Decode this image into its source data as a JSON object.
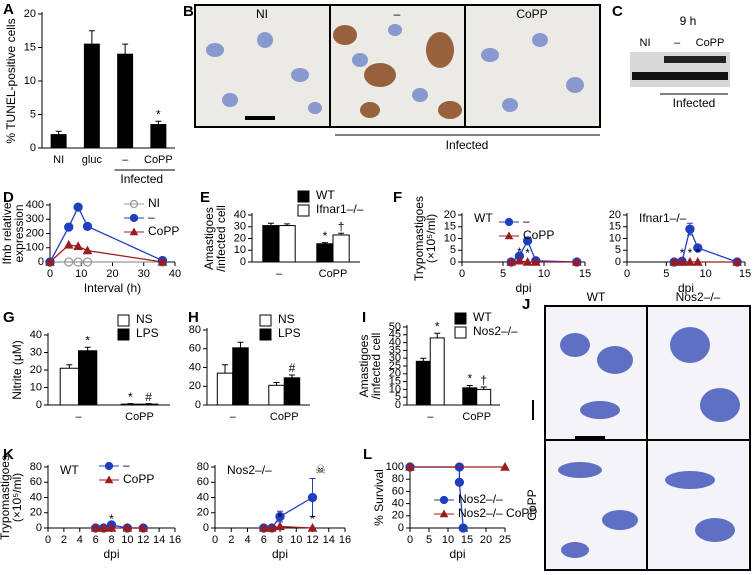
{
  "chart_data": [
    {
      "type": "bar",
      "panel": "A",
      "ylabel": "% TUNEL-positive cells",
      "categories": [
        "NI",
        "gluc",
        "–",
        "CoPP"
      ],
      "group_label": "Infected",
      "series": [
        {
          "color": "#000000",
          "values": [
            2,
            15.5,
            14,
            3.5
          ],
          "errors": [
            0.5,
            2,
            1.5,
            0.5
          ],
          "notes": [
            null,
            null,
            null,
            "*"
          ]
        }
      ],
      "ylim": [
        0,
        20
      ],
      "yticks": [
        0,
        5,
        10,
        15,
        20
      ]
    },
    {
      "type": "line",
      "panel": "D",
      "ylabel": [
        "Ifnb relative",
        "expression"
      ],
      "xlabel": "Interval (h)",
      "xlim": [
        0,
        40
      ],
      "xticks": [
        0,
        10,
        20,
        30,
        40
      ],
      "ylim": [
        0,
        400
      ],
      "yticks": [
        0,
        100,
        200,
        300,
        400
      ],
      "series": [
        {
          "name": "NI",
          "color": "#999999",
          "marker": "circle",
          "marker_fill": "none",
          "x": [
            0,
            6,
            9,
            12,
            36
          ],
          "values": [
            0,
            0,
            0,
            0,
            0
          ]
        },
        {
          "name": "–",
          "color": "#1f3fbf",
          "marker": "circle",
          "x": [
            0,
            6,
            9,
            12,
            36
          ],
          "values": [
            0,
            245,
            385,
            250,
            10
          ]
        },
        {
          "name": "CoPP",
          "color": "#9b1c1c",
          "marker": "triangle",
          "x": [
            0,
            6,
            9,
            12,
            36
          ],
          "values": [
            0,
            120,
            110,
            80,
            0
          ]
        }
      ]
    },
    {
      "type": "bar",
      "panel": "E",
      "ylabel": [
        "Amastigoes",
        "/infected cell"
      ],
      "categories": [
        "–",
        "CoPP"
      ],
      "series": [
        {
          "name": "WT",
          "color": "#000000",
          "values": [
            31,
            15.5
          ],
          "errors": [
            2,
            1
          ],
          "notes": [
            null,
            "*"
          ]
        },
        {
          "name": "Ifnar1–/–",
          "color": "#ffffff",
          "values": [
            31,
            23
          ],
          "errors": [
            1.5,
            1.5
          ],
          "notes": [
            null,
            "†"
          ]
        }
      ],
      "ylim": [
        0,
        40
      ],
      "yticks": [
        0,
        10,
        20,
        30,
        40
      ]
    },
    {
      "type": "line",
      "panel": "F",
      "subtitle": "WT",
      "ylabel": [
        "Trypomastigoes",
        "(×10⁵/ml)"
      ],
      "xlabel": "dpi",
      "xlim": [
        0,
        15
      ],
      "xticks": [
        0,
        5,
        10,
        15
      ],
      "ylim": [
        0,
        20
      ],
      "yticks": [
        0,
        5,
        10,
        15,
        20
      ],
      "series": [
        {
          "name": "–",
          "color": "#1f3fbf",
          "marker": "circle",
          "x": [
            6,
            7,
            8,
            9,
            14
          ],
          "values": [
            0,
            2.5,
            9,
            0.5,
            0
          ],
          "errors": [
            0,
            1,
            1,
            0.3,
            0
          ]
        },
        {
          "name": "CoPP",
          "color": "#9b1c1c",
          "marker": "triangle",
          "x": [
            6,
            7,
            8,
            9,
            14
          ],
          "values": [
            0,
            0.5,
            0,
            0,
            0
          ],
          "notes": [
            null,
            "*",
            "*",
            null,
            null
          ]
        }
      ]
    },
    {
      "type": "line",
      "subtitle": "Ifnar1–/–",
      "xlabel": "dpi",
      "xlim": [
        0,
        15
      ],
      "xticks": [
        0,
        5,
        10,
        15
      ],
      "ylim": [
        0,
        20
      ],
      "yticks": [
        0,
        5,
        10,
        15,
        20
      ],
      "series": [
        {
          "color": "#1f3fbf",
          "marker": "circle",
          "x": [
            6,
            7,
            8,
            9,
            14
          ],
          "values": [
            0,
            0.3,
            14,
            6,
            0
          ],
          "errors": [
            0,
            0.2,
            2.5,
            1.2,
            0
          ]
        },
        {
          "color": "#9b1c1c",
          "marker": "triangle",
          "x": [
            6,
            7,
            8,
            9,
            14
          ],
          "values": [
            0,
            0,
            0,
            0,
            0
          ],
          "notes": [
            null,
            "*",
            "*",
            "*",
            null
          ]
        }
      ]
    },
    {
      "type": "bar",
      "panel": "G",
      "ylabel": "Nitrite (μM)",
      "categories": [
        "–",
        "CoPP"
      ],
      "series": [
        {
          "name": "NS",
          "color": "#ffffff",
          "values": [
            21,
            0.5
          ],
          "errors": [
            2,
            0.3
          ],
          "notes": [
            null,
            "*"
          ]
        },
        {
          "name": "LPS",
          "color": "#000000",
          "values": [
            31,
            0.5
          ],
          "errors": [
            2,
            0.3
          ],
          "notes": [
            "*",
            "#"
          ]
        }
      ],
      "ylim": [
        0,
        40
      ],
      "yticks": [
        0,
        10,
        20,
        30,
        40
      ]
    },
    {
      "type": "bar",
      "panel": "H",
      "categories": [
        "–",
        "CoPP"
      ],
      "series": [
        {
          "name": "NS",
          "color": "#ffffff",
          "values": [
            34,
            21
          ],
          "errors": [
            9,
            3
          ]
        },
        {
          "name": "LPS",
          "color": "#000000",
          "values": [
            61,
            29
          ],
          "errors": [
            6,
            3
          ],
          "notes": [
            null,
            "#"
          ]
        }
      ],
      "ylim": [
        0,
        80
      ],
      "yticks": [
        0,
        20,
        40,
        60,
        80
      ]
    },
    {
      "type": "bar",
      "panel": "I",
      "ylabel": [
        "Amastigoes",
        "/infected cell"
      ],
      "categories": [
        "–",
        "CoPP"
      ],
      "series": [
        {
          "name": "WT",
          "color": "#000000",
          "values": [
            28,
            11
          ],
          "errors": [
            2,
            1.5
          ],
          "notes": [
            null,
            "*"
          ]
        },
        {
          "name": "Nos2–/–",
          "color": "#ffffff",
          "values": [
            43,
            10
          ],
          "errors": [
            3,
            1.5
          ],
          "notes": [
            "*",
            "†"
          ]
        }
      ],
      "ylim": [
        0,
        50
      ],
      "yticks": [
        0,
        5,
        10,
        15,
        20,
        25,
        30,
        35,
        40,
        45,
        50
      ]
    },
    {
      "type": "line",
      "panel": "K",
      "subtitle": "WT",
      "ylabel": [
        "Trypomastigoes",
        "(×10⁵/ml)"
      ],
      "xlabel": "dpi",
      "xlim": [
        0,
        16
      ],
      "xticks": [
        0,
        2,
        4,
        6,
        8,
        10,
        12,
        14,
        16
      ],
      "ylim": [
        0,
        80
      ],
      "yticks": [
        0,
        20,
        40,
        60,
        80
      ],
      "series": [
        {
          "name": "–",
          "color": "#1f3fbf",
          "marker": "circle",
          "x": [
            6,
            7,
            8,
            10,
            12
          ],
          "values": [
            0,
            0,
            4,
            0,
            0
          ],
          "errors": [
            0,
            0,
            2,
            0,
            0
          ]
        },
        {
          "name": "CoPP",
          "color": "#9b1c1c",
          "marker": "triangle",
          "x": [
            6,
            7,
            8,
            10,
            12
          ],
          "values": [
            0,
            0,
            0,
            0,
            0
          ],
          "notes": [
            null,
            null,
            "*",
            null,
            null
          ]
        }
      ]
    },
    {
      "type": "line",
      "subtitle": "Nos2–/–",
      "xlabel": "dpi",
      "xlim": [
        0,
        16
      ],
      "xticks": [
        0,
        2,
        4,
        6,
        8,
        10,
        12,
        14,
        16
      ],
      "ylim": [
        0,
        80
      ],
      "yticks": [
        0,
        20,
        40,
        60,
        80
      ],
      "series": [
        {
          "color": "#1f3fbf",
          "marker": "circle",
          "x": [
            6,
            7,
            8,
            12
          ],
          "values": [
            0,
            0,
            15,
            40
          ],
          "errors": [
            0,
            0,
            7,
            25
          ],
          "notes": [
            null,
            null,
            null,
            "☠"
          ]
        },
        {
          "color": "#9b1c1c",
          "marker": "triangle",
          "x": [
            6,
            7,
            8,
            12
          ],
          "values": [
            0,
            0,
            2,
            0
          ],
          "notes": [
            null,
            null,
            "*",
            "*"
          ]
        }
      ]
    },
    {
      "type": "line",
      "panel": "L",
      "ylabel": "% Survival",
      "xlabel": "dpi",
      "xlim": [
        0,
        25
      ],
      "xticks": [
        0,
        5,
        10,
        15,
        20,
        25
      ],
      "ylim": [
        0,
        100
      ],
      "yticks": [
        0,
        20,
        40,
        60,
        80,
        100
      ],
      "series": [
        {
          "name": "Nos2–/–",
          "color": "#1f3fbf",
          "marker": "circle",
          "x": [
            0,
            13,
            13,
            14
          ],
          "values": [
            100,
            100,
            75,
            0
          ]
        },
        {
          "name": "Nos2–/– CoPP",
          "color": "#9b1c1c",
          "marker": "triangle",
          "x": [
            0,
            25
          ],
          "values": [
            100,
            100
          ]
        }
      ]
    }
  ],
  "image_panels": [
    {
      "panel": "B",
      "labels": [
        "NI",
        "–",
        "CoPP"
      ],
      "group_label": "Infected"
    },
    {
      "panel": "C",
      "title": "9 h",
      "labels": [
        "NI",
        "–",
        "CoPP"
      ],
      "group_label": "Infected"
    },
    {
      "panel": "J",
      "columns": [
        "WT",
        "Nos2–/–"
      ],
      "row_label": "CoPP"
    }
  ]
}
